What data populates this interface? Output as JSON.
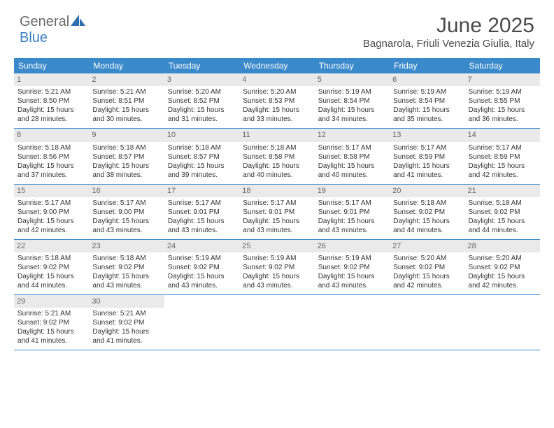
{
  "brand": {
    "part1": "General",
    "part2": "Blue"
  },
  "title": "June 2025",
  "location": "Bagnarola, Friuli Venezia Giulia, Italy",
  "header_bg": "#3a8acb",
  "header_fg": "#ffffff",
  "text_color": "#333333",
  "daynum_bg": "#eaeaea",
  "cell_fontsize": 10,
  "days": [
    "Sunday",
    "Monday",
    "Tuesday",
    "Wednesday",
    "Thursday",
    "Friday",
    "Saturday"
  ],
  "weeks": [
    [
      {
        "n": "1",
        "sr": "Sunrise: 5:21 AM",
        "ss": "Sunset: 8:50 PM",
        "d1": "Daylight: 15 hours",
        "d2": "and 28 minutes."
      },
      {
        "n": "2",
        "sr": "Sunrise: 5:21 AM",
        "ss": "Sunset: 8:51 PM",
        "d1": "Daylight: 15 hours",
        "d2": "and 30 minutes."
      },
      {
        "n": "3",
        "sr": "Sunrise: 5:20 AM",
        "ss": "Sunset: 8:52 PM",
        "d1": "Daylight: 15 hours",
        "d2": "and 31 minutes."
      },
      {
        "n": "4",
        "sr": "Sunrise: 5:20 AM",
        "ss": "Sunset: 8:53 PM",
        "d1": "Daylight: 15 hours",
        "d2": "and 33 minutes."
      },
      {
        "n": "5",
        "sr": "Sunrise: 5:19 AM",
        "ss": "Sunset: 8:54 PM",
        "d1": "Daylight: 15 hours",
        "d2": "and 34 minutes."
      },
      {
        "n": "6",
        "sr": "Sunrise: 5:19 AM",
        "ss": "Sunset: 8:54 PM",
        "d1": "Daylight: 15 hours",
        "d2": "and 35 minutes."
      },
      {
        "n": "7",
        "sr": "Sunrise: 5:19 AM",
        "ss": "Sunset: 8:55 PM",
        "d1": "Daylight: 15 hours",
        "d2": "and 36 minutes."
      }
    ],
    [
      {
        "n": "8",
        "sr": "Sunrise: 5:18 AM",
        "ss": "Sunset: 8:56 PM",
        "d1": "Daylight: 15 hours",
        "d2": "and 37 minutes."
      },
      {
        "n": "9",
        "sr": "Sunrise: 5:18 AM",
        "ss": "Sunset: 8:57 PM",
        "d1": "Daylight: 15 hours",
        "d2": "and 38 minutes."
      },
      {
        "n": "10",
        "sr": "Sunrise: 5:18 AM",
        "ss": "Sunset: 8:57 PM",
        "d1": "Daylight: 15 hours",
        "d2": "and 39 minutes."
      },
      {
        "n": "11",
        "sr": "Sunrise: 5:18 AM",
        "ss": "Sunset: 8:58 PM",
        "d1": "Daylight: 15 hours",
        "d2": "and 40 minutes."
      },
      {
        "n": "12",
        "sr": "Sunrise: 5:17 AM",
        "ss": "Sunset: 8:58 PM",
        "d1": "Daylight: 15 hours",
        "d2": "and 40 minutes."
      },
      {
        "n": "13",
        "sr": "Sunrise: 5:17 AM",
        "ss": "Sunset: 8:59 PM",
        "d1": "Daylight: 15 hours",
        "d2": "and 41 minutes."
      },
      {
        "n": "14",
        "sr": "Sunrise: 5:17 AM",
        "ss": "Sunset: 8:59 PM",
        "d1": "Daylight: 15 hours",
        "d2": "and 42 minutes."
      }
    ],
    [
      {
        "n": "15",
        "sr": "Sunrise: 5:17 AM",
        "ss": "Sunset: 9:00 PM",
        "d1": "Daylight: 15 hours",
        "d2": "and 42 minutes."
      },
      {
        "n": "16",
        "sr": "Sunrise: 5:17 AM",
        "ss": "Sunset: 9:00 PM",
        "d1": "Daylight: 15 hours",
        "d2": "and 43 minutes."
      },
      {
        "n": "17",
        "sr": "Sunrise: 5:17 AM",
        "ss": "Sunset: 9:01 PM",
        "d1": "Daylight: 15 hours",
        "d2": "and 43 minutes."
      },
      {
        "n": "18",
        "sr": "Sunrise: 5:17 AM",
        "ss": "Sunset: 9:01 PM",
        "d1": "Daylight: 15 hours",
        "d2": "and 43 minutes."
      },
      {
        "n": "19",
        "sr": "Sunrise: 5:17 AM",
        "ss": "Sunset: 9:01 PM",
        "d1": "Daylight: 15 hours",
        "d2": "and 43 minutes."
      },
      {
        "n": "20",
        "sr": "Sunrise: 5:18 AM",
        "ss": "Sunset: 9:02 PM",
        "d1": "Daylight: 15 hours",
        "d2": "and 44 minutes."
      },
      {
        "n": "21",
        "sr": "Sunrise: 5:18 AM",
        "ss": "Sunset: 9:02 PM",
        "d1": "Daylight: 15 hours",
        "d2": "and 44 minutes."
      }
    ],
    [
      {
        "n": "22",
        "sr": "Sunrise: 5:18 AM",
        "ss": "Sunset: 9:02 PM",
        "d1": "Daylight: 15 hours",
        "d2": "and 44 minutes."
      },
      {
        "n": "23",
        "sr": "Sunrise: 5:18 AM",
        "ss": "Sunset: 9:02 PM",
        "d1": "Daylight: 15 hours",
        "d2": "and 43 minutes."
      },
      {
        "n": "24",
        "sr": "Sunrise: 5:19 AM",
        "ss": "Sunset: 9:02 PM",
        "d1": "Daylight: 15 hours",
        "d2": "and 43 minutes."
      },
      {
        "n": "25",
        "sr": "Sunrise: 5:19 AM",
        "ss": "Sunset: 9:02 PM",
        "d1": "Daylight: 15 hours",
        "d2": "and 43 minutes."
      },
      {
        "n": "26",
        "sr": "Sunrise: 5:19 AM",
        "ss": "Sunset: 9:02 PM",
        "d1": "Daylight: 15 hours",
        "d2": "and 43 minutes."
      },
      {
        "n": "27",
        "sr": "Sunrise: 5:20 AM",
        "ss": "Sunset: 9:02 PM",
        "d1": "Daylight: 15 hours",
        "d2": "and 42 minutes."
      },
      {
        "n": "28",
        "sr": "Sunrise: 5:20 AM",
        "ss": "Sunset: 9:02 PM",
        "d1": "Daylight: 15 hours",
        "d2": "and 42 minutes."
      }
    ],
    [
      {
        "n": "29",
        "sr": "Sunrise: 5:21 AM",
        "ss": "Sunset: 9:02 PM",
        "d1": "Daylight: 15 hours",
        "d2": "and 41 minutes."
      },
      {
        "n": "30",
        "sr": "Sunrise: 5:21 AM",
        "ss": "Sunset: 9:02 PM",
        "d1": "Daylight: 15 hours",
        "d2": "and 41 minutes."
      },
      null,
      null,
      null,
      null,
      null
    ]
  ]
}
